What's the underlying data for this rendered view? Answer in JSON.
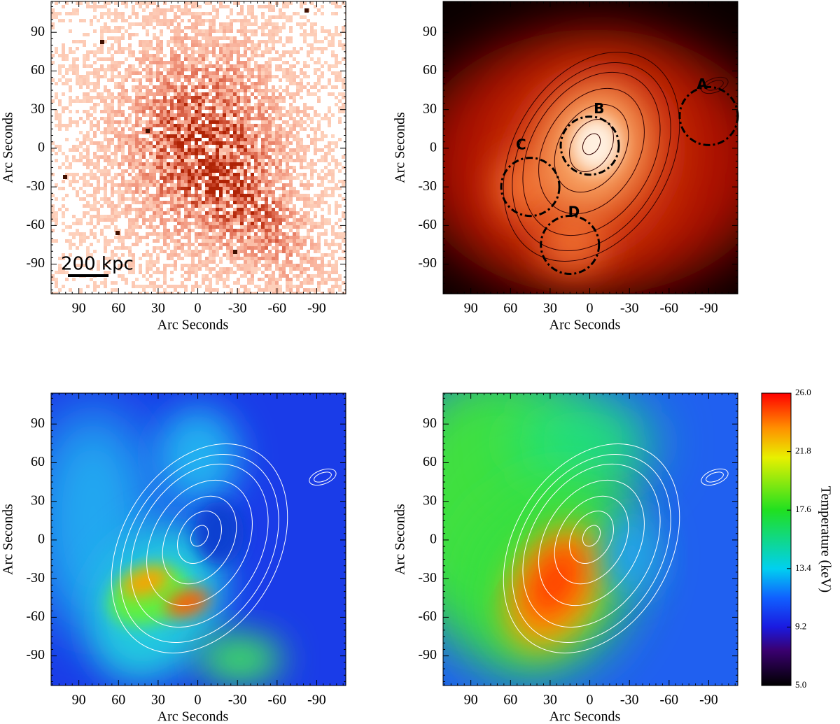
{
  "chart_data": [
    {
      "type": "image",
      "xlabel": "Arc Seconds",
      "ylabel": "Arc Seconds",
      "xlim": [
        111,
        -112
      ],
      "ylim": [
        -113,
        114
      ],
      "xticks": [
        90,
        60,
        30,
        0,
        -30,
        -60,
        -90
      ],
      "yticks": [
        -90,
        -60,
        -30,
        0,
        30,
        60,
        90
      ],
      "annotations": [
        "200 kpc"
      ],
      "palette": "counts"
    },
    {
      "type": "image",
      "xlabel": "Arc Seconds",
      "ylabel": "Arc Seconds",
      "xlim": [
        111,
        -112
      ],
      "ylim": [
        -113,
        114
      ],
      "xticks": [
        90,
        60,
        30,
        0,
        -30,
        -60,
        -90
      ],
      "yticks": [
        -90,
        -60,
        -30,
        0,
        30,
        60,
        90
      ],
      "annotations": [
        "A",
        "B",
        "C",
        "D"
      ],
      "palette": "smooth"
    },
    {
      "type": "image",
      "xlabel": "Arc Seconds",
      "ylabel": "Arc Seconds",
      "xlim": [
        111,
        -112
      ],
      "ylim": [
        -113,
        114
      ],
      "xticks": [
        90,
        60,
        30,
        0,
        -30,
        -60,
        -90
      ],
      "yticks": [
        -90,
        -60,
        -30,
        0,
        30,
        60,
        90
      ],
      "palette": "temp-fine"
    },
    {
      "type": "image",
      "xlabel": "Arc Seconds",
      "ylabel": "Arc Seconds",
      "xlim": [
        111,
        -112
      ],
      "ylim": [
        -113,
        114
      ],
      "xticks": [
        90,
        60,
        30,
        0,
        -30,
        -60,
        -90
      ],
      "yticks": [
        -90,
        -60,
        -30,
        0,
        30,
        60,
        90
      ],
      "palette": "temp-smooth"
    },
    {
      "type": "colorbar",
      "label": "Temperature (keV)",
      "ylim": [
        5,
        26
      ],
      "yticks": [
        {
          "value": 5,
          "label": "5.0"
        },
        9.2,
        13.4,
        17.6,
        21.8,
        {
          "value": 26,
          "label": "26.0"
        }
      ]
    }
  ]
}
